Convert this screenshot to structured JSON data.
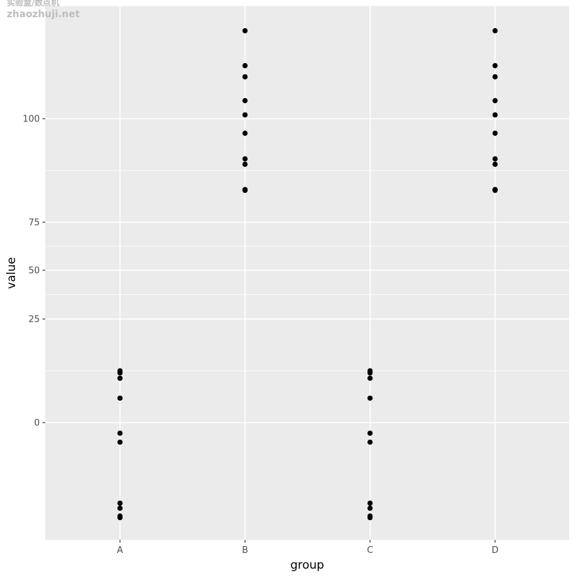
{
  "watermark": {
    "line1": "实验盒/数点机",
    "line2": "zhaozhuji.net"
  },
  "chart_data": {
    "type": "scatter",
    "xlabel": "group",
    "ylabel": "value",
    "categories": [
      "A",
      "B",
      "C",
      "D"
    ],
    "y_ticks": [
      0,
      25,
      50,
      75,
      100
    ],
    "y_scale": "piecewise-broken",
    "grid": true,
    "series": [
      {
        "category": "A",
        "values": [
          12.5,
          12.0,
          10.7,
          5.9,
          -2.7,
          -5.0,
          -20.6,
          -21.9,
          -23.9,
          -24.3
        ]
      },
      {
        "category": "B",
        "values": [
          122.9,
          113.8,
          110.9,
          104.7,
          101.0,
          96.5,
          90.3,
          89.0,
          82.9,
          82.7
        ]
      },
      {
        "category": "C",
        "values": [
          12.5,
          12.0,
          10.7,
          5.9,
          -2.7,
          -5.0,
          -20.6,
          -21.9,
          -23.9,
          -24.3
        ]
      },
      {
        "category": "D",
        "values": [
          122.9,
          113.8,
          110.9,
          104.7,
          101.0,
          96.5,
          90.3,
          89.0,
          82.9,
          82.7
        ]
      }
    ],
    "colors": {
      "panel": "#ebebeb",
      "grid": "#ffffff",
      "point": "#000000",
      "tick": "#333333"
    }
  }
}
